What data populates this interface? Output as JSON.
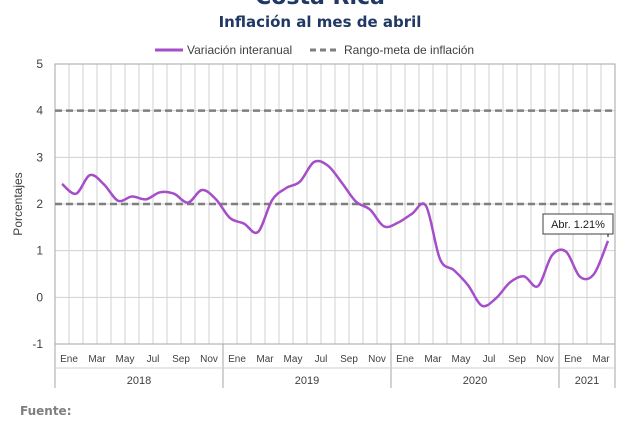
{
  "header": {
    "title": "Costa Rica",
    "subtitle": "Inflación al mes de abril"
  },
  "footer": {
    "source_label": "Fuente:"
  },
  "chart_data": {
    "type": "line",
    "ylabel": "Porcentajes",
    "ylim": [
      -1,
      5
    ],
    "yticks": [
      -1,
      0,
      1,
      2,
      3,
      4,
      5
    ],
    "grid": true,
    "legend_position": "top",
    "month_tick_labels": [
      "Ene",
      "",
      "Mar",
      "",
      "May",
      "",
      "Jul",
      "",
      "Sep",
      "",
      "Nov",
      "",
      "Ene",
      "",
      "Mar",
      "",
      "May",
      "",
      "Jul",
      "",
      "Sep",
      "",
      "Nov",
      "",
      "Ene",
      "",
      "Mar",
      "",
      "May",
      "",
      "Jul",
      "",
      "Sep",
      "",
      "Nov",
      "",
      "Ene",
      "",
      "Mar",
      ""
    ],
    "year_groups": [
      {
        "label": "2018",
        "months": 12
      },
      {
        "label": "2019",
        "months": 12
      },
      {
        "label": "2020",
        "months": 12
      },
      {
        "label": "2021",
        "months": 4
      }
    ],
    "series": [
      {
        "name": "Variación interanual",
        "color": "#a64dc9",
        "style": "solid",
        "values": [
          2.43,
          2.22,
          2.62,
          2.42,
          2.07,
          2.16,
          2.1,
          2.25,
          2.22,
          2.03,
          2.3,
          2.1,
          1.7,
          1.58,
          1.4,
          2.08,
          2.34,
          2.48,
          2.9,
          2.82,
          2.45,
          2.05,
          1.88,
          1.52,
          1.6,
          1.79,
          1.96,
          0.82,
          0.58,
          0.26,
          -0.18,
          -0.02,
          0.32,
          0.45,
          0.24,
          0.9,
          0.98,
          0.44,
          0.5,
          1.21
        ]
      },
      {
        "name": "Rango-meta de inflación",
        "color": "#7f7f7f",
        "style": "dashed",
        "lines": [
          2,
          4
        ]
      }
    ],
    "annotation": {
      "text": "Abr. 1.21%",
      "index": 39
    }
  }
}
